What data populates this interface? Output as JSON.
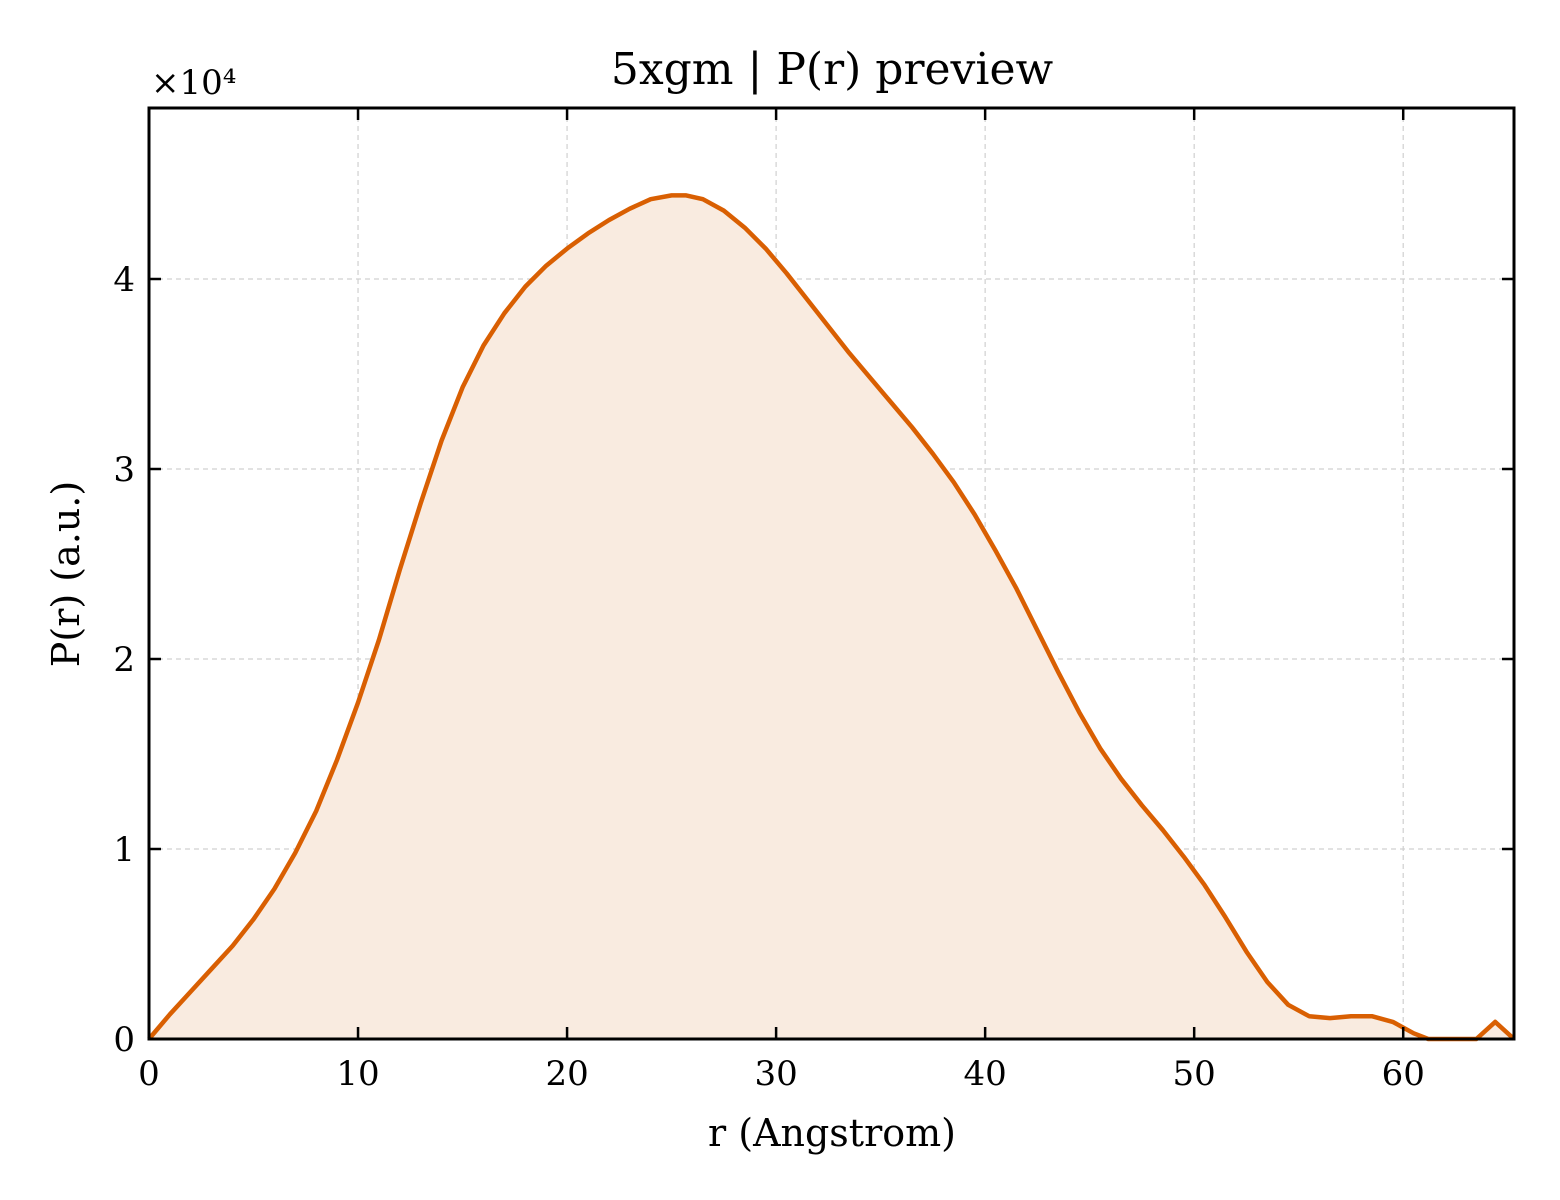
{
  "chart_data": {
    "type": "area",
    "title": "5xgm | P(r) preview",
    "xlabel": "r (Angstrom)",
    "ylabel": "P(r) (a.u.)",
    "y_multiplier_label": "×10⁴",
    "xlim": [
      0,
      65.3
    ],
    "ylim": [
      0,
      4.9
    ],
    "xticks": [
      0,
      10,
      20,
      30,
      40,
      50,
      60
    ],
    "yticks": [
      0,
      1,
      2,
      3,
      4
    ],
    "grid": true,
    "line_color": "#d95f02",
    "fill_color": "#f9ebe0",
    "series": [
      {
        "x": [
          0,
          1,
          2,
          3,
          4,
          5,
          6,
          7,
          8,
          9,
          10,
          11,
          12,
          13,
          14,
          15,
          16,
          17,
          18,
          19,
          20,
          21,
          22,
          23,
          24,
          25,
          25.7,
          26.5,
          27.5,
          28.5,
          29.5,
          30.5,
          31.5,
          32.5,
          33.5,
          34.5,
          35.5,
          36.5,
          37.5,
          38.5,
          39.5,
          40.5,
          41.5,
          42.5,
          43.5,
          44.5,
          45.5,
          46.5,
          47.5,
          48.5,
          49.5,
          50.5,
          51.5,
          52.5,
          53.5,
          54.5,
          55.5,
          56.5,
          57.5,
          58.5,
          59.5,
          60.5,
          61.2,
          63.5,
          64.4,
          65.3
        ],
        "y": [
          0,
          0.13,
          0.25,
          0.37,
          0.49,
          0.63,
          0.79,
          0.98,
          1.2,
          1.47,
          1.77,
          2.1,
          2.47,
          2.82,
          3.15,
          3.43,
          3.65,
          3.82,
          3.96,
          4.07,
          4.16,
          4.24,
          4.31,
          4.37,
          4.42,
          4.44,
          4.44,
          4.42,
          4.36,
          4.27,
          4.16,
          4.03,
          3.89,
          3.75,
          3.61,
          3.48,
          3.35,
          3.22,
          3.08,
          2.93,
          2.76,
          2.57,
          2.37,
          2.15,
          1.93,
          1.72,
          1.53,
          1.37,
          1.23,
          1.1,
          0.96,
          0.81,
          0.64,
          0.46,
          0.3,
          0.18,
          0.12,
          0.11,
          0.12,
          0.12,
          0.09,
          0.03,
          0,
          0,
          0.09,
          0
        ]
      }
    ]
  }
}
